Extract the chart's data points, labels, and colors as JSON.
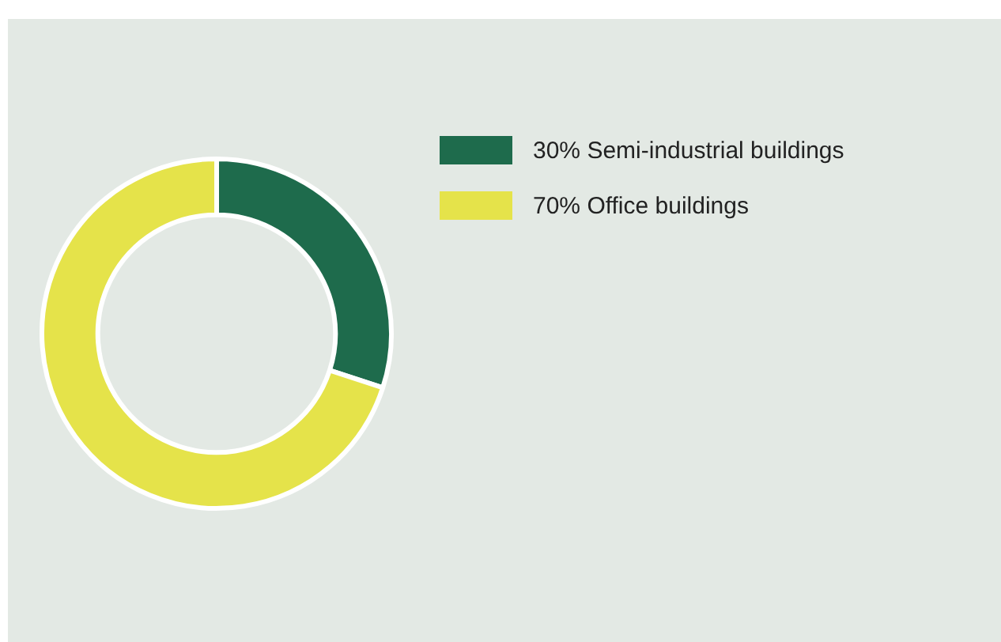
{
  "chart_data": {
    "type": "donut",
    "categories": [
      "30% Semi-industrial buildings",
      "70% Office buildings"
    ],
    "values": [
      30,
      70
    ],
    "colors": [
      "#1e6b4c",
      "#e5e34a"
    ],
    "legend": "top right"
  }
}
